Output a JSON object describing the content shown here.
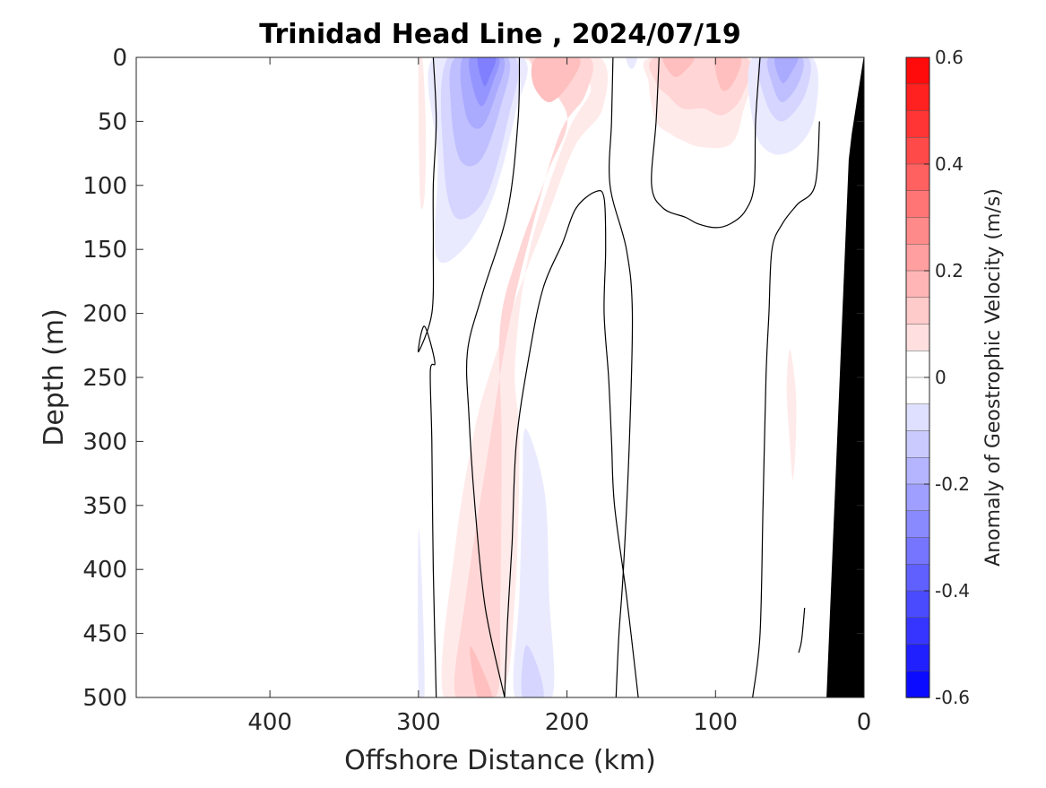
{
  "chart_data": {
    "type": "heatmap",
    "title": "Trinidad Head Line , 2024/07/19",
    "xlabel": "Offshore Distance (km)",
    "ylabel": "Depth (m)",
    "xlim": [
      490,
      0
    ],
    "ylim": [
      0,
      500
    ],
    "x_reversed": true,
    "y_reversed": true,
    "xticks": [
      400,
      300,
      200,
      100,
      0
    ],
    "yticks": [
      0,
      50,
      100,
      150,
      200,
      250,
      300,
      350,
      400,
      450,
      500
    ],
    "colorbar": {
      "label": "Anomaly of Geostrophic Velocity (m/s)",
      "range": [
        -0.6,
        0.6
      ],
      "step": 0.05,
      "ticks": [
        0.6,
        0.4,
        0.2,
        0,
        -0.2,
        -0.4,
        -0.6
      ],
      "tick_labels": [
        "0.6",
        "0.4",
        "0.2",
        "0",
        "-0.2",
        "-0.4",
        "-0.6"
      ],
      "positive_color": "#ff0000",
      "negative_color": "#0000ff"
    },
    "features": [
      {
        "kind": "fill",
        "value": 0.05,
        "points": [
          [
            300,
            5
          ],
          [
            297,
            5
          ],
          [
            295,
            60
          ],
          [
            296,
            110
          ],
          [
            299,
            108
          ]
        ]
      },
      {
        "kind": "fill",
        "value": -0.05,
        "points": [
          [
            290,
            0
          ],
          [
            230,
            0
          ],
          [
            235,
            45
          ],
          [
            250,
            110
          ],
          [
            270,
            150
          ],
          [
            288,
            155
          ],
          [
            287,
            80
          ]
        ]
      },
      {
        "kind": "fill",
        "value": -0.1,
        "points": [
          [
            280,
            0
          ],
          [
            235,
            0
          ],
          [
            240,
            50
          ],
          [
            255,
            110
          ],
          [
            275,
            125
          ],
          [
            283,
            80
          ]
        ]
      },
      {
        "kind": "fill",
        "value": -0.15,
        "points": [
          [
            275,
            0
          ],
          [
            240,
            0
          ],
          [
            245,
            40
          ],
          [
            258,
            80
          ],
          [
            272,
            80
          ],
          [
            278,
            40
          ]
        ]
      },
      {
        "kind": "fill",
        "value": -0.2,
        "points": [
          [
            270,
            0
          ],
          [
            243,
            0
          ],
          [
            248,
            30
          ],
          [
            258,
            55
          ],
          [
            268,
            45
          ]
        ]
      },
      {
        "kind": "fill",
        "value": -0.25,
        "points": [
          [
            265,
            0
          ],
          [
            246,
            0
          ],
          [
            250,
            20
          ],
          [
            257,
            38
          ],
          [
            263,
            25
          ]
        ]
      },
      {
        "kind": "fill",
        "value": -0.3,
        "points": [
          [
            260,
            0
          ],
          [
            248,
            0
          ],
          [
            252,
            15
          ],
          [
            256,
            22
          ]
        ]
      },
      {
        "kind": "fill",
        "value": 0.05,
        "points": [
          [
            230,
            0
          ],
          [
            178,
            0
          ],
          [
            176,
            40
          ],
          [
            195,
            70
          ],
          [
            215,
            130
          ],
          [
            235,
            190
          ],
          [
            250,
            240
          ],
          [
            262,
            290
          ],
          [
            275,
            380
          ],
          [
            283,
            500
          ],
          [
            245,
            500
          ],
          [
            235,
            420
          ],
          [
            232,
            300
          ],
          [
            235,
            240
          ],
          [
            225,
            150
          ],
          [
            200,
            60
          ],
          [
            185,
            20
          ]
        ]
      },
      {
        "kind": "fill",
        "value": 0.1,
        "points": [
          [
            225,
            0
          ],
          [
            185,
            0
          ],
          [
            188,
            30
          ],
          [
            205,
            60
          ],
          [
            225,
            140
          ],
          [
            240,
            215
          ],
          [
            252,
            300
          ],
          [
            268,
            420
          ],
          [
            275,
            500
          ],
          [
            248,
            500
          ],
          [
            245,
            430
          ],
          [
            244,
            300
          ],
          [
            245,
            210
          ],
          [
            232,
            150
          ],
          [
            213,
            90
          ],
          [
            200,
            45
          ]
        ]
      },
      {
        "kind": "fill",
        "value": 0.15,
        "points": [
          [
            220,
            0
          ],
          [
            192,
            0
          ],
          [
            198,
            20
          ],
          [
            212,
            35
          ],
          [
            223,
            20
          ]
        ]
      },
      {
        "kind": "fill",
        "value": 0.15,
        "points": [
          [
            265,
            460
          ],
          [
            260,
            500
          ],
          [
            250,
            500
          ]
        ]
      },
      {
        "kind": "fill",
        "value": -0.05,
        "points": [
          [
            228,
            290
          ],
          [
            215,
            340
          ],
          [
            212,
            420
          ],
          [
            210,
            500
          ],
          [
            235,
            500
          ],
          [
            232,
            420
          ],
          [
            230,
            340
          ]
        ]
      },
      {
        "kind": "fill",
        "value": -0.1,
        "points": [
          [
            228,
            460
          ],
          [
            220,
            475
          ],
          [
            216,
            500
          ],
          [
            230,
            500
          ]
        ]
      },
      {
        "kind": "fill",
        "value": -0.05,
        "points": [
          [
            300,
            370
          ],
          [
            297,
            430
          ],
          [
            296,
            500
          ],
          [
            300,
            500
          ]
        ]
      },
      {
        "kind": "fill",
        "value": -0.05,
        "points": [
          [
            160,
            0
          ],
          [
            153,
            0
          ],
          [
            155,
            8
          ],
          [
            158,
            8
          ]
        ]
      },
      {
        "kind": "fill",
        "value": 0.05,
        "points": [
          [
            143,
            0
          ],
          [
            78,
            0
          ],
          [
            82,
            45
          ],
          [
            90,
            68
          ],
          [
            110,
            70
          ],
          [
            122,
            65
          ],
          [
            130,
            60
          ],
          [
            140,
            50
          ],
          [
            145,
            20
          ]
        ]
      },
      {
        "kind": "fill",
        "value": 0.1,
        "points": [
          [
            140,
            0
          ],
          [
            80,
            0
          ],
          [
            82,
            30
          ],
          [
            95,
            45
          ],
          [
            108,
            40
          ],
          [
            122,
            40
          ],
          [
            132,
            30
          ],
          [
            140,
            20
          ]
        ]
      },
      {
        "kind": "fill",
        "value": 0.15,
        "points": [
          [
            135,
            0
          ],
          [
            115,
            0
          ],
          [
            120,
            10
          ],
          [
            128,
            15
          ]
        ]
      },
      {
        "kind": "fill",
        "value": 0.15,
        "points": [
          [
            100,
            0
          ],
          [
            83,
            0
          ],
          [
            88,
            20
          ],
          [
            96,
            25
          ]
        ]
      },
      {
        "kind": "fill",
        "value": -0.05,
        "points": [
          [
            75,
            0
          ],
          [
            35,
            0
          ],
          [
            33,
            45
          ],
          [
            45,
            70
          ],
          [
            62,
            75
          ],
          [
            74,
            55
          ]
        ]
      },
      {
        "kind": "fill",
        "value": -0.1,
        "points": [
          [
            70,
            0
          ],
          [
            38,
            0
          ],
          [
            40,
            30
          ],
          [
            55,
            50
          ],
          [
            66,
            35
          ]
        ]
      },
      {
        "kind": "fill",
        "value": -0.15,
        "points": [
          [
            64,
            0
          ],
          [
            42,
            0
          ],
          [
            44,
            20
          ],
          [
            55,
            35
          ],
          [
            62,
            20
          ]
        ]
      },
      {
        "kind": "fill",
        "value": -0.2,
        "points": [
          [
            60,
            0
          ],
          [
            45,
            0
          ],
          [
            48,
            10
          ],
          [
            55,
            20
          ]
        ]
      },
      {
        "kind": "fill",
        "value": 0.05,
        "points": [
          [
            50,
            228
          ],
          [
            46,
            260
          ],
          [
            46,
            300
          ],
          [
            48,
            330
          ],
          [
            50,
            300
          ],
          [
            52,
            260
          ]
        ]
      },
      {
        "kind": "contour",
        "value": 0,
        "points": [
          [
            290,
            0
          ],
          [
            288,
            50
          ],
          [
            290,
            100
          ],
          [
            290,
            150
          ],
          [
            291,
            200
          ],
          [
            300,
            230
          ],
          [
            296,
            210
          ],
          [
            289,
            238
          ],
          [
            292,
            245
          ],
          [
            291,
            300
          ],
          [
            290,
            400
          ],
          [
            288,
            500
          ]
        ]
      },
      {
        "kind": "contour",
        "value": 0,
        "points": [
          [
            232,
            0
          ],
          [
            233,
            50
          ],
          [
            240,
            120
          ],
          [
            257,
            185
          ],
          [
            267,
            230
          ],
          [
            266,
            280
          ],
          [
            262,
            350
          ],
          [
            255,
            430
          ],
          [
            242,
            500
          ]
        ]
      },
      {
        "kind": "contour",
        "value": 0,
        "points": [
          [
            152,
            500
          ],
          [
            160,
            420
          ],
          [
            168,
            350
          ],
          [
            170,
            300
          ],
          [
            172,
            250
          ],
          [
            175,
            200
          ],
          [
            174,
            150
          ],
          [
            175,
            110
          ],
          [
            181,
            105
          ],
          [
            194,
            118
          ],
          [
            203,
            145
          ],
          [
            216,
            180
          ],
          [
            225,
            230
          ],
          [
            234,
            300
          ],
          [
            237,
            380
          ],
          [
            240,
            440
          ],
          [
            242,
            500
          ]
        ]
      },
      {
        "kind": "contour",
        "value": 0,
        "points": [
          [
            169,
            0
          ],
          [
            170,
            50
          ],
          [
            171,
            100
          ],
          [
            160,
            150
          ],
          [
            156,
            200
          ],
          [
            158,
            300
          ],
          [
            162,
            400
          ],
          [
            165,
            450
          ],
          [
            167,
            500
          ]
        ]
      },
      {
        "kind": "contour",
        "value": 0,
        "points": [
          [
            138,
            0
          ],
          [
            140,
            50
          ],
          [
            143,
            100
          ],
          [
            135,
            118
          ],
          [
            120,
            125
          ],
          [
            112,
            130
          ],
          [
            100,
            133
          ],
          [
            90,
            130
          ],
          [
            80,
            120
          ],
          [
            74,
            100
          ],
          [
            73,
            50
          ],
          [
            70,
            0
          ]
        ]
      },
      {
        "kind": "contour",
        "value": 0,
        "points": [
          [
            30,
            50
          ],
          [
            33,
            100
          ],
          [
            45,
            115
          ],
          [
            55,
            130
          ],
          [
            62,
            150
          ],
          [
            64,
            200
          ],
          [
            66,
            250
          ],
          [
            68,
            350
          ],
          [
            70,
            450
          ],
          [
            75,
            500
          ]
        ]
      },
      {
        "kind": "contour",
        "value": 0,
        "points": [
          [
            40,
            430
          ],
          [
            42,
            455
          ],
          [
            44,
            465
          ]
        ]
      },
      {
        "kind": "bathymetry",
        "points": [
          [
            0,
            0
          ],
          [
            8,
            60
          ],
          [
            10,
            80
          ],
          [
            25,
            500
          ],
          [
            0,
            500
          ]
        ]
      }
    ]
  }
}
